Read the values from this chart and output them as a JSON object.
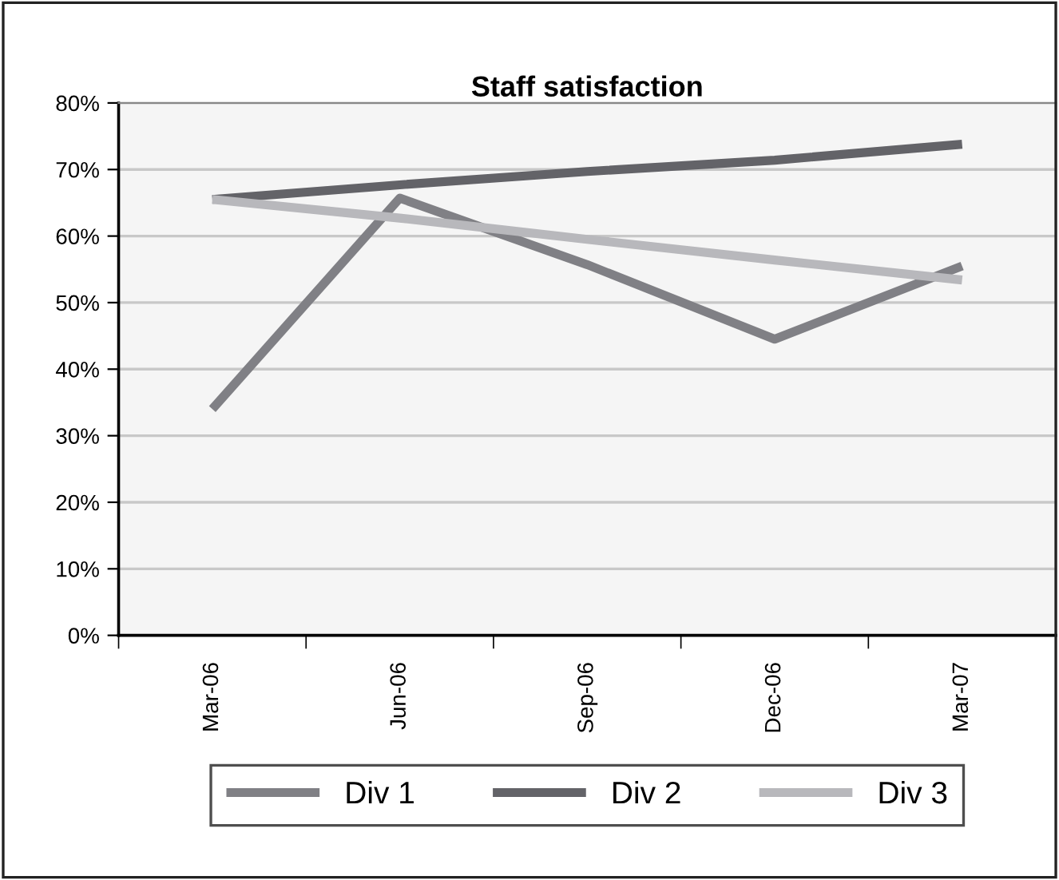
{
  "chart_data": {
    "type": "line",
    "title": "Staff satisfaction",
    "categories": [
      "Mar-06",
      "Jun-06",
      "Sep-06",
      "Dec-06",
      "Mar-07"
    ],
    "series": [
      {
        "name": "Div 1",
        "color": "#808085",
        "values": [
          34,
          65.7,
          55.7,
          44.5,
          55.5
        ]
      },
      {
        "name": "Div 2",
        "color": "#636368",
        "values": [
          65.5,
          67.7,
          69.7,
          71.4,
          73.8
        ]
      },
      {
        "name": "Div 3",
        "color": "#b8b8bc",
        "values": [
          65.5,
          62.7,
          59.5,
          56.4,
          53.4
        ]
      }
    ],
    "ylim": [
      0,
      80
    ],
    "yticks": [
      {
        "value": 0,
        "label": "0%"
      },
      {
        "value": 10,
        "label": "10%"
      },
      {
        "value": 20,
        "label": "20%"
      },
      {
        "value": 30,
        "label": "30%"
      },
      {
        "value": 40,
        "label": "40%"
      },
      {
        "value": 50,
        "label": "50%"
      },
      {
        "value": 60,
        "label": "60%"
      },
      {
        "value": 70,
        "label": "70%"
      },
      {
        "value": 80,
        "label": "80%"
      }
    ],
    "grid": "y",
    "legend": "bottom",
    "marker": "none",
    "line_style": "solid"
  }
}
